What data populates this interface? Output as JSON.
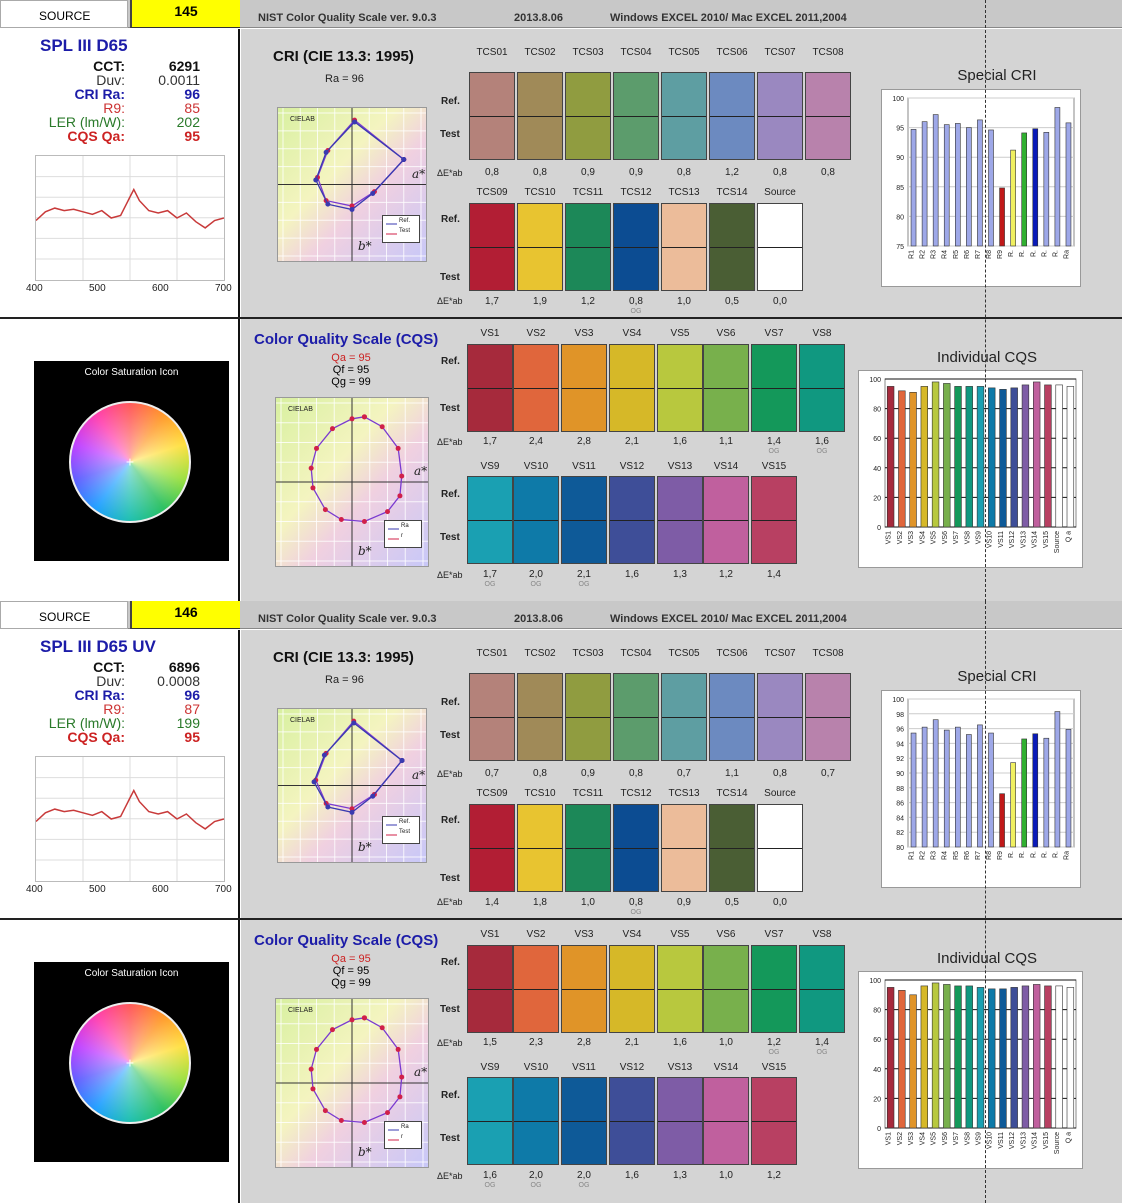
{
  "header": {
    "source_label": "SOURCE",
    "title": "NIST Color Quality Scale  ver. 9.0.3",
    "date": "2013.8.06",
    "compat": "Windows EXCEL 2010/ Mac EXCEL 2011,2004"
  },
  "labels": {
    "cct": "CCT:",
    "duv": "Duv:",
    "cri_ra": "CRI Ra:",
    "r9": "R9:",
    "ler": "LER (lm/W):",
    "cqs_qa": "CQS Qa:",
    "cri_title": "CRI (CIE 13.3: 1995)",
    "cqs_title": "Color Quality Scale (CQS)",
    "special_cri": "Special CRI",
    "individual_cqs": "Individual CQS",
    "color_sat_icon": "Color Saturation Icon",
    "ref": "Ref.",
    "test": "Test",
    "de": "ΔE*ab",
    "cielab": "CIELAB",
    "astar": "a*",
    "bstar": "b*",
    "og": "OG",
    "legend_ref": "Ref.",
    "legend_test": "Test",
    "legend_ref_short": "Ra",
    "legend_ref_short2": "r"
  },
  "spectrum_axis": [
    "400",
    "500",
    "600",
    "700"
  ],
  "colors": {
    "tcs": [
      "#b4827a",
      "#a08a58",
      "#909c40",
      "#5c9c6c",
      "#5e9ea2",
      "#6c8ac0",
      "#9a88c0",
      "#b882ac",
      "#b21e34",
      "#e8c430",
      "#1c8858",
      "#0c4c92",
      "#ecbc9a",
      "#4a5e34",
      "#ffffff"
    ],
    "vs": [
      "#a62a3c",
      "#e0663c",
      "#e09428",
      "#d6b828",
      "#b8c83e",
      "#78b04c",
      "#14985a",
      "#109880",
      "#1aa0b2",
      "#0e7aa8",
      "#0e5a98",
      "#3e4e98",
      "#7e5ca6",
      "#c0609e",
      "#b84062"
    ],
    "cri_bar_base": "#9ea8e8",
    "cri_bar_r9": "#c01818",
    "cri_bar_r10": "#f0f060",
    "cri_bar_r11": "#30b030",
    "cri_bar_r12": "#0a1ab8",
    "spectrum_line": "#c83a3a",
    "title_blue": "#1c1ca8",
    "qa_red": "#cc2222",
    "ler_green": "#2a7a2a"
  },
  "sources": [
    {
      "number": "145",
      "name": "SPL III D65",
      "cct": "6291",
      "duv": "0.0011",
      "cri_ra": "96",
      "r9": "85",
      "ler": "202",
      "cqs_qa": "95",
      "ra_text": "Ra = 96",
      "qa_text": "Qa = 95",
      "qf_text": "Qf = 95",
      "qg_text": "Qg = 99",
      "tcs_codes": [
        "TCS01",
        "TCS02",
        "TCS03",
        "TCS04",
        "TCS05",
        "TCS06",
        "TCS07",
        "TCS08",
        "TCS09",
        "TCS10",
        "TCS11",
        "TCS12",
        "TCS13",
        "TCS14",
        "Source"
      ],
      "tcs_de": [
        "0,8",
        "0,8",
        "0,9",
        "0,9",
        "0,8",
        "1,2",
        "0,8",
        "0,8",
        "1,7",
        "1,9",
        "1,2",
        "0,8",
        "1,0",
        "0,5",
        "0,0"
      ],
      "tcs_og": [
        11
      ],
      "vs_codes": [
        "VS1",
        "VS2",
        "VS3",
        "VS4",
        "VS5",
        "VS6",
        "VS7",
        "VS8",
        "VS9",
        "VS10",
        "VS11",
        "VS12",
        "VS13",
        "VS14",
        "VS15"
      ],
      "vs_de": [
        "1,7",
        "2,4",
        "2,8",
        "2,1",
        "1,6",
        "1,1",
        "1,4",
        "1,6",
        "1,7",
        "2,0",
        "2,1",
        "1,6",
        "1,3",
        "1,2",
        "1,4"
      ],
      "vs_og": [
        6,
        7,
        8,
        9,
        10
      ],
      "cri_chart": {
        "type": "bar",
        "categories": [
          "R1",
          "R2",
          "R3",
          "R4",
          "R5",
          "R6",
          "R7",
          "R8",
          "R9",
          "R10",
          "R11",
          "R12",
          "R13",
          "R14",
          "Ra"
        ],
        "tick_labels": [
          "R1",
          "R2",
          "R3",
          "R4",
          "R5",
          "R6",
          "R7",
          "R8",
          "R9",
          "R.",
          "R.",
          "R.",
          "R.",
          "R.",
          "Ra"
        ],
        "values": [
          94.7,
          96.0,
          97.2,
          95.5,
          95.7,
          95.0,
          96.3,
          94.6,
          84.8,
          91.2,
          94.1,
          94.8,
          94.2,
          98.4,
          95.8
        ],
        "ylim": [
          75,
          100
        ],
        "yticks": [
          "75",
          "80",
          "85",
          "90",
          "95",
          "100"
        ],
        "grid": true
      },
      "cqs_chart": {
        "type": "bar",
        "categories": [
          "VS1",
          "VS2",
          "VS3",
          "VS4",
          "VS5",
          "VS6",
          "VS7",
          "VS8",
          "VS9",
          "VS10",
          "VS11",
          "VS12",
          "VS13",
          "VS14",
          "VS15",
          "Source",
          "Q a"
        ],
        "values": [
          95,
          92,
          91,
          95,
          98,
          97,
          95,
          95,
          95,
          94,
          93,
          94,
          96,
          98,
          96,
          96,
          95
        ],
        "ylim": [
          0,
          100
        ],
        "yticks": [
          "0",
          "20",
          "40",
          "60",
          "80",
          "100"
        ],
        "grid": true
      },
      "cri_ref_pts": [
        [
          60,
          28
        ],
        [
          3,
          72
        ],
        [
          -28,
          38
        ],
        [
          -40,
          8
        ],
        [
          -30,
          -18
        ],
        [
          0,
          -24
        ],
        [
          26,
          -8
        ],
        [
          60,
          28
        ]
      ],
      "cri_test_pts": [
        [
          60,
          28
        ],
        [
          3,
          70
        ],
        [
          -30,
          36
        ],
        [
          -42,
          5
        ],
        [
          -28,
          -22
        ],
        [
          0,
          -28
        ],
        [
          24,
          -10
        ],
        [
          60,
          28
        ]
      ],
      "cqs_pts": [
        [
          14,
          66
        ],
        [
          34,
          56
        ],
        [
          52,
          34
        ],
        [
          56,
          6
        ],
        [
          54,
          -14
        ],
        [
          40,
          -30
        ],
        [
          14,
          -40
        ],
        [
          -12,
          -38
        ],
        [
          -30,
          -28
        ],
        [
          -44,
          -6
        ],
        [
          -46,
          14
        ],
        [
          -40,
          34
        ],
        [
          -22,
          54
        ],
        [
          0,
          64
        ],
        [
          14,
          66
        ]
      ]
    },
    {
      "number": "146",
      "name": "SPL III D65 UV",
      "cct": "6896",
      "duv": "0.0008",
      "cri_ra": "96",
      "r9": "87",
      "ler": "199",
      "cqs_qa": "95",
      "ra_text": "Ra = 96",
      "qa_text": "Qa = 95",
      "qf_text": "Qf = 95",
      "qg_text": "Qg = 99",
      "tcs_codes": [
        "TCS01",
        "TCS02",
        "TCS03",
        "TCS04",
        "TCS05",
        "TCS06",
        "TCS07",
        "TCS08",
        "TCS09",
        "TCS10",
        "TCS11",
        "TCS12",
        "TCS13",
        "TCS14",
        "Source"
      ],
      "tcs_de": [
        "0,7",
        "0,8",
        "0,9",
        "0,8",
        "0,7",
        "1,1",
        "0,8",
        "0,7",
        "1,4",
        "1,8",
        "1,0",
        "0,8",
        "0,9",
        "0,5",
        "0,0"
      ],
      "tcs_og": [
        11
      ],
      "vs_codes": [
        "VS1",
        "VS2",
        "VS3",
        "VS4",
        "VS5",
        "VS6",
        "VS7",
        "VS8",
        "VS9",
        "VS10",
        "VS11",
        "VS12",
        "VS13",
        "VS14",
        "VS15"
      ],
      "vs_de": [
        "1,5",
        "2,3",
        "2,8",
        "2,1",
        "1,6",
        "1,0",
        "1,2",
        "1,4",
        "1,6",
        "2,0",
        "2,0",
        "1,6",
        "1,3",
        "1,0",
        "1,2"
      ],
      "vs_og": [
        6,
        7,
        8,
        9,
        10
      ],
      "cri_chart": {
        "type": "bar",
        "categories": [
          "R1",
          "R2",
          "R3",
          "R4",
          "R5",
          "R6",
          "R7",
          "R8",
          "R9",
          "R10",
          "R11",
          "R12",
          "R13",
          "R14",
          "Ra"
        ],
        "tick_labels": [
          "R1",
          "R2",
          "R3",
          "R4",
          "R5",
          "R6",
          "R7",
          "R8",
          "R9",
          "R.",
          "R.",
          "R.",
          "R.",
          "R.",
          "Ra"
        ],
        "values": [
          95.4,
          96.2,
          97.2,
          95.8,
          96.2,
          95.2,
          96.5,
          95.4,
          87.2,
          91.4,
          94.6,
          95.3,
          94.7,
          98.3,
          95.9
        ],
        "ylim": [
          80,
          100
        ],
        "yticks": [
          "80",
          "82",
          "84",
          "86",
          "88",
          "90",
          "92",
          "94",
          "96",
          "98",
          "100"
        ],
        "grid": true
      },
      "cqs_chart": {
        "type": "bar",
        "categories": [
          "VS1",
          "VS2",
          "VS3",
          "VS4",
          "VS5",
          "VS6",
          "VS7",
          "VS8",
          "VS9",
          "VS10",
          "VS11",
          "VS12",
          "VS13",
          "VS14",
          "VS15",
          "Source",
          "Q a"
        ],
        "values": [
          95,
          93,
          90,
          96,
          98,
          97,
          96,
          96,
          95,
          94,
          94,
          95,
          96,
          97,
          96,
          96,
          95
        ],
        "ylim": [
          0,
          100
        ],
        "yticks": [
          "0",
          "20",
          "40",
          "60",
          "80",
          "100"
        ],
        "grid": true
      },
      "cri_ref_pts": [
        [
          58,
          28
        ],
        [
          2,
          72
        ],
        [
          -30,
          36
        ],
        [
          -42,
          6
        ],
        [
          -30,
          -20
        ],
        [
          0,
          -26
        ],
        [
          26,
          -10
        ],
        [
          58,
          28
        ]
      ],
      "cri_test_pts": [
        [
          58,
          28
        ],
        [
          2,
          70
        ],
        [
          -32,
          34
        ],
        [
          -44,
          4
        ],
        [
          -28,
          -24
        ],
        [
          0,
          -30
        ],
        [
          24,
          -12
        ],
        [
          58,
          28
        ]
      ],
      "cqs_pts": [
        [
          14,
          66
        ],
        [
          34,
          56
        ],
        [
          52,
          34
        ],
        [
          56,
          6
        ],
        [
          54,
          -14
        ],
        [
          40,
          -30
        ],
        [
          14,
          -40
        ],
        [
          -12,
          -38
        ],
        [
          -30,
          -28
        ],
        [
          -44,
          -6
        ],
        [
          -46,
          14
        ],
        [
          -40,
          34
        ],
        [
          -22,
          54
        ],
        [
          0,
          64
        ],
        [
          14,
          66
        ]
      ]
    }
  ]
}
